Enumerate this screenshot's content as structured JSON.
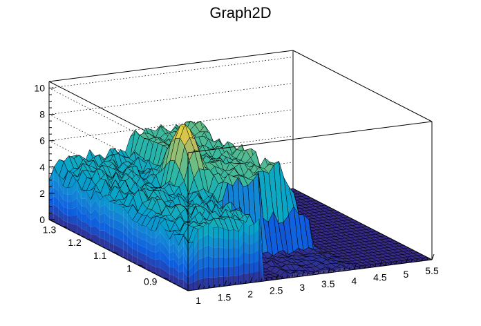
{
  "chart_data": {
    "type": "surface",
    "title": "Graph2D",
    "x": {
      "range": [
        0.8,
        5.5
      ],
      "ticks": [
        1,
        1.5,
        2,
        2.5,
        3,
        3.5,
        4,
        4.5,
        5,
        5.5
      ],
      "tick_labels": [
        "1",
        "1.5",
        "2",
        "2.5",
        "3",
        "3.5",
        "4",
        "4.5",
        "5",
        "5.5"
      ]
    },
    "y": {
      "range": [
        0.8,
        1.35
      ],
      "ticks": [
        0.9,
        1.0,
        1.1,
        1.2,
        1.3
      ],
      "tick_labels": [
        "0.9",
        "1",
        "1.1",
        "1.2",
        "1.3"
      ]
    },
    "z": {
      "range": [
        0,
        10.5
      ],
      "ticks": [
        0,
        2,
        4,
        6,
        8,
        10
      ],
      "tick_labels": [
        "0",
        "2",
        "4",
        "6",
        "8",
        "10"
      ]
    },
    "grid": true,
    "colormap": "viridis",
    "colors": {
      "low": "#352a87",
      "mid": "#21a0a3",
      "high": "#f9fb0e"
    },
    "surface_regions": [
      {
        "description": "plateau",
        "x": [
          0.8,
          2.5
        ],
        "y": [
          0.8,
          1.35
        ],
        "z": 4.5
      },
      {
        "description": "central peak",
        "x": 2.2,
        "y": 1.1,
        "z": 8.8
      },
      {
        "description": "right ridge",
        "x": [
          3.0,
          4.0
        ],
        "y": [
          0.95,
          1.35
        ],
        "z": 6.5
      },
      {
        "description": "notch / gap",
        "x": [
          2.2,
          2.7
        ],
        "y": [
          0.8,
          0.95
        ],
        "z": 0
      },
      {
        "description": "flat floor",
        "x": [
          4.0,
          5.5
        ],
        "y": [
          0.8,
          1.35
        ],
        "z": 0
      }
    ]
  }
}
